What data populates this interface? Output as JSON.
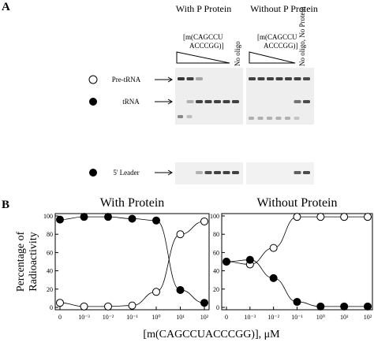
{
  "panel_a": {
    "label": "A",
    "left_title": "With P Protein",
    "right_title": "Without P Protein",
    "oligo_left": [
      "[m(CAGCCU",
      "ACCCGG)]"
    ],
    "oligo_right": [
      "[m(CAGCCU",
      "ACCCGG)]"
    ],
    "no_oligo": "No oligo",
    "no_oligo_no_protein": "No oligo, No Protein",
    "rows": [
      "Pre-tRNA",
      "tRNA",
      "5' Leader"
    ]
  },
  "panel_b": {
    "label": "B",
    "y_label": [
      "Percentage of",
      "Radioactivity"
    ],
    "x_label": "[m(CAGCCUACCCGG)], μM"
  },
  "chart_data": [
    {
      "type": "line",
      "title": "With Protein",
      "categories": [
        "0",
        "10⁻³",
        "10⁻²",
        "10⁻¹",
        "10⁰",
        "10¹",
        "10²"
      ],
      "ylim": [
        0,
        100
      ],
      "yticks": [
        0,
        20,
        40,
        60,
        80,
        100
      ],
      "series": [
        {
          "marker": "open",
          "color": "#000000",
          "values": [
            5,
            1,
            1,
            2,
            17,
            80,
            94
          ]
        },
        {
          "marker": "filled",
          "color": "#000000",
          "values": [
            96,
            99,
            99,
            97,
            95,
            19,
            5
          ]
        }
      ]
    },
    {
      "type": "line",
      "title": "Without Protein",
      "categories": [
        "0",
        "10⁻³",
        "10⁻²",
        "10⁻¹",
        "10⁰",
        "10¹",
        "10²"
      ],
      "ylim": [
        0,
        100
      ],
      "yticks": [
        0,
        20,
        40,
        60,
        80,
        100
      ],
      "series": [
        {
          "marker": "open",
          "color": "#000000",
          "values": [
            50,
            47,
            65,
            99,
            99,
            99,
            99
          ]
        },
        {
          "marker": "filled",
          "color": "#000000",
          "values": [
            50,
            52,
            32,
            6,
            1,
            1,
            1
          ]
        }
      ]
    }
  ]
}
